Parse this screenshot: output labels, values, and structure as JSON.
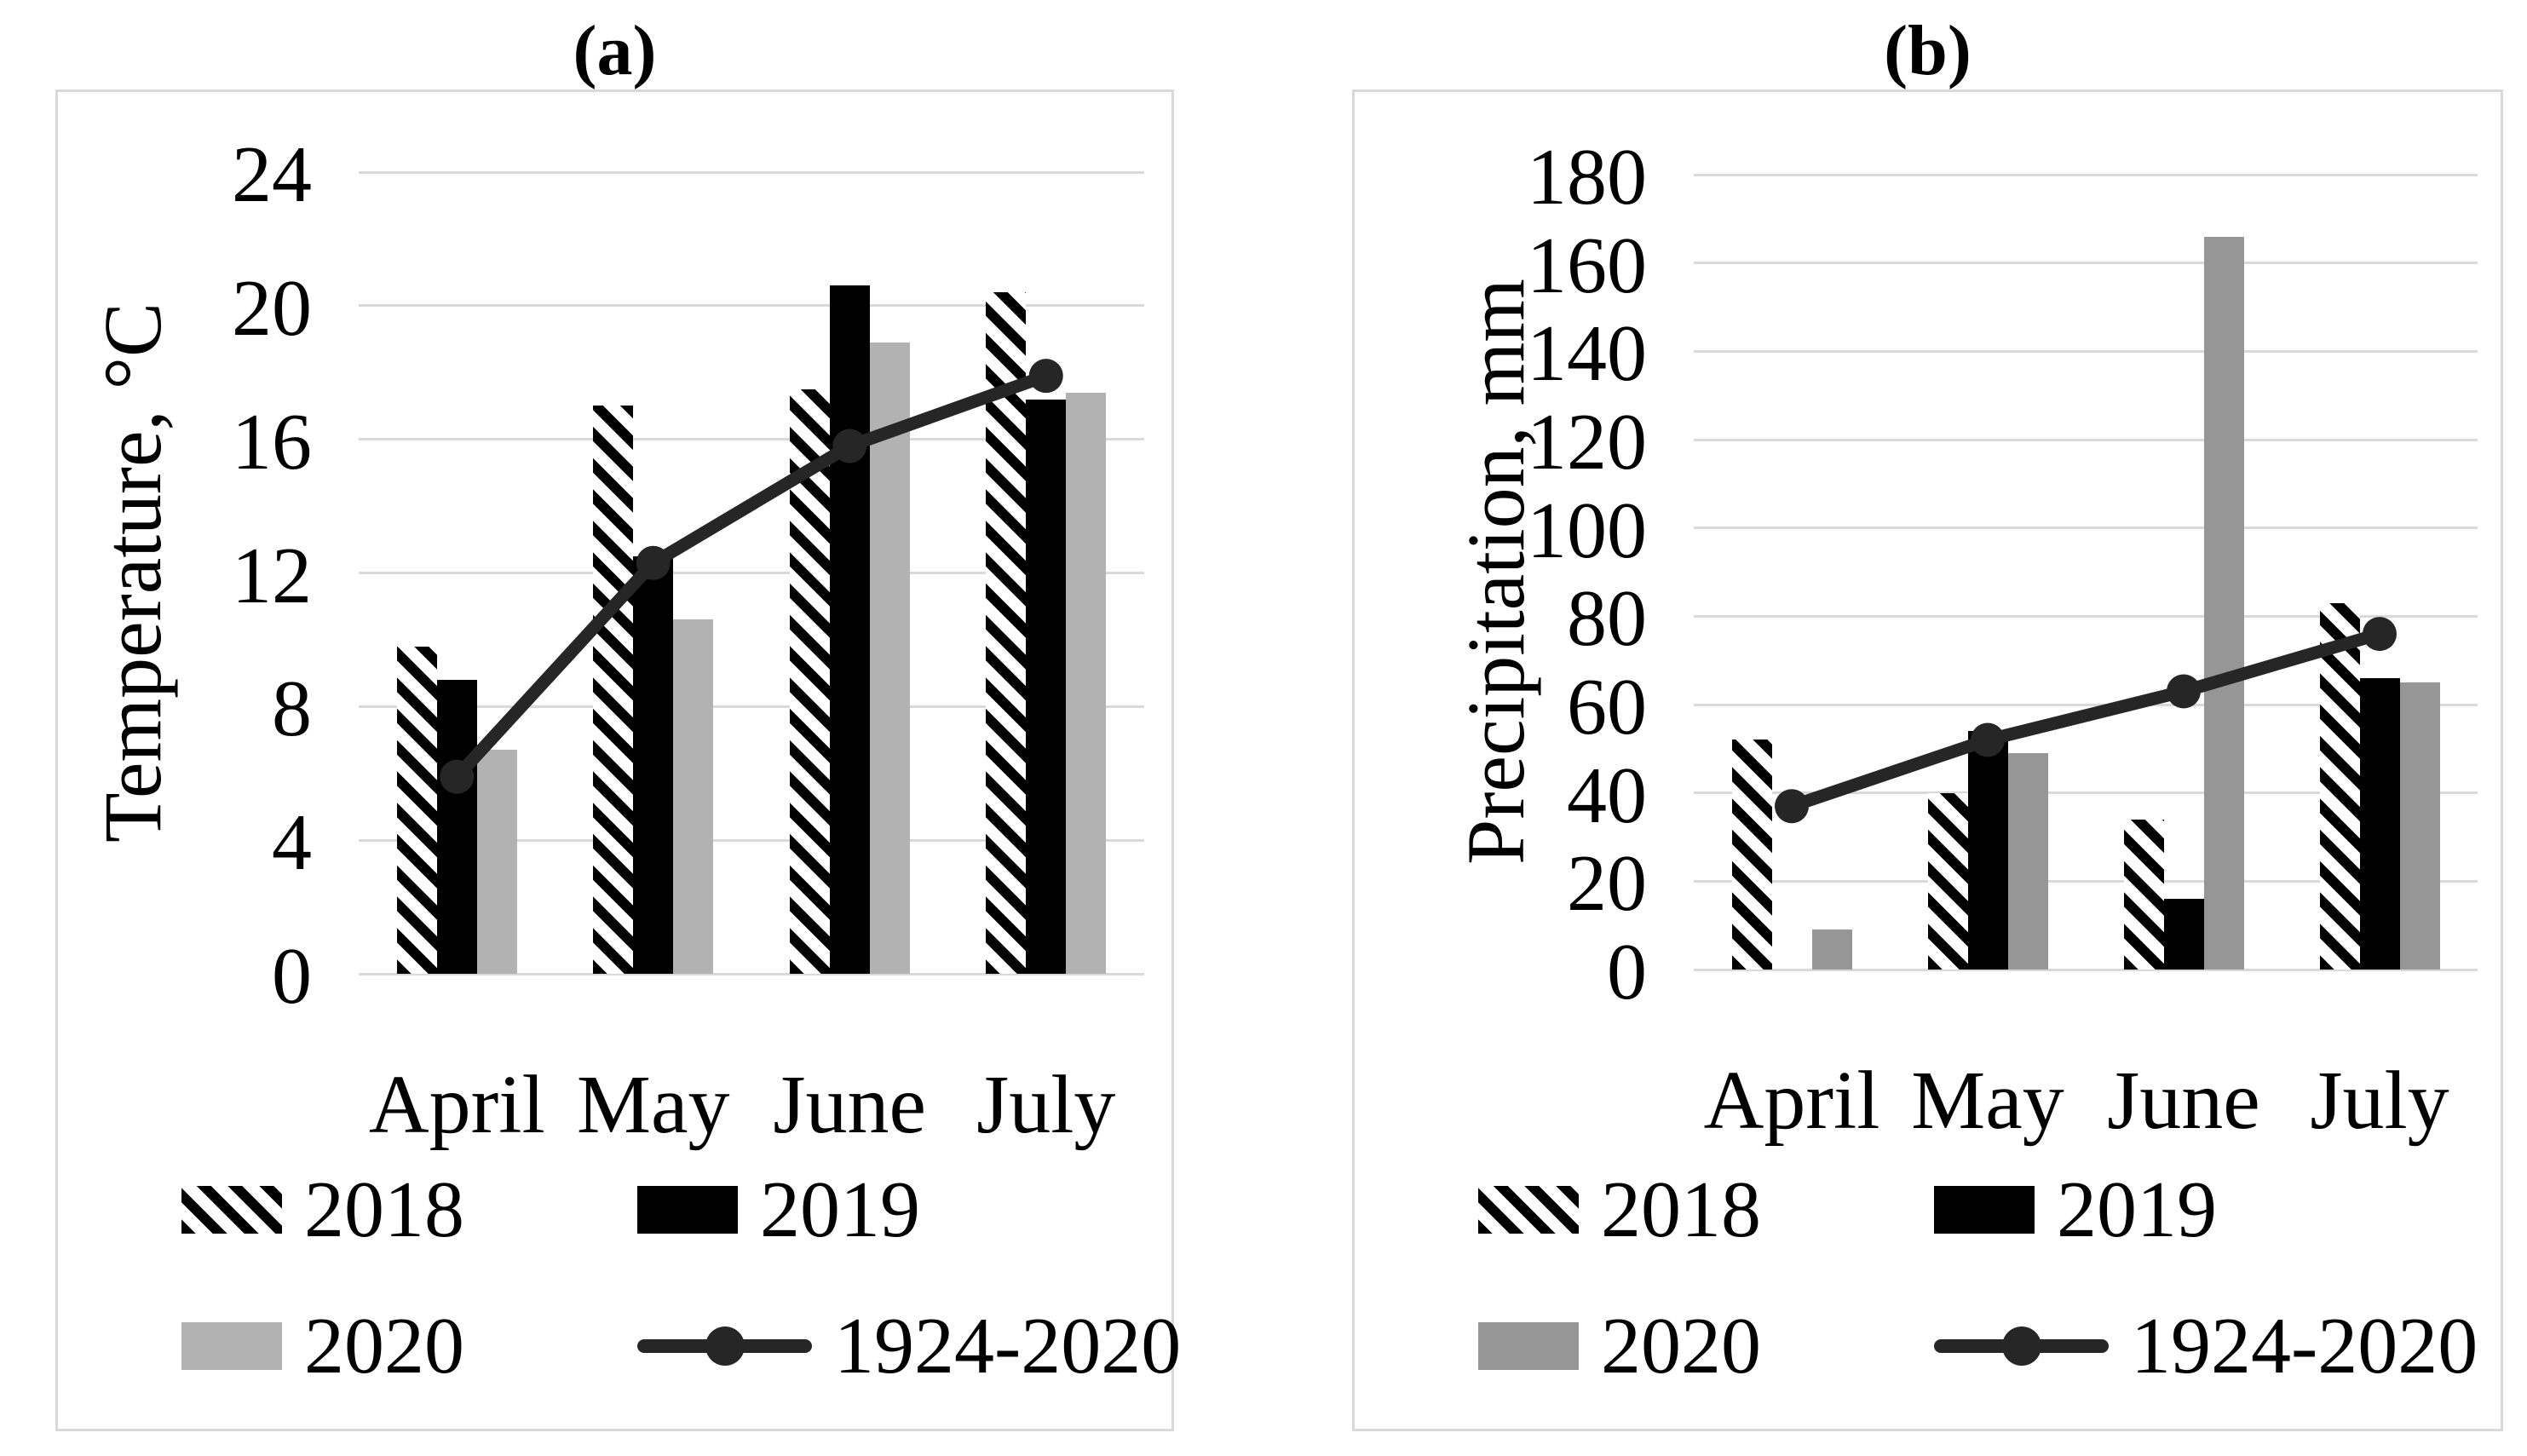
{
  "colors": {
    "bar_black": "#000000",
    "bar_gray_panel_a": "#b2b2b2",
    "bar_gray_panel_b": "#969696",
    "trend_line": "#262626",
    "gridline": "#d9d9d9",
    "panel_border": "#d9d9d9",
    "text": "#000000"
  },
  "chart_data": [
    {
      "type": "bar+line",
      "title": "(a)",
      "categories": [
        "April",
        "May",
        "June",
        "July"
      ],
      "series": [
        {
          "name": "2018",
          "kind": "bar",
          "pattern": "diagonal-hatch",
          "color": "#000000",
          "values": [
            9.8,
            17.0,
            17.5,
            20.4
          ]
        },
        {
          "name": "2019",
          "kind": "bar",
          "pattern": "solid",
          "color": "#000000",
          "values": [
            8.8,
            12.5,
            20.6,
            17.2
          ]
        },
        {
          "name": "2020",
          "kind": "bar",
          "pattern": "solid",
          "color": "#b2b2b2",
          "values": [
            6.7,
            10.6,
            18.9,
            17.4
          ]
        },
        {
          "name": "1924-2020",
          "kind": "line",
          "marker": "circle",
          "color": "#262626",
          "values": [
            5.9,
            12.3,
            15.8,
            17.9
          ]
        }
      ],
      "xlabel": "",
      "ylabel": "Temperature, °C",
      "ylim": [
        0,
        24
      ],
      "yticks": [
        24,
        20,
        16,
        12,
        8,
        4,
        0
      ],
      "grid": true,
      "legend_position": "bottom"
    },
    {
      "type": "bar+line",
      "title": "(b)",
      "categories": [
        "April",
        "May",
        "June",
        "July"
      ],
      "series": [
        {
          "name": "2018",
          "kind": "bar",
          "pattern": "diagonal-hatch",
          "color": "#000000",
          "values": [
            52,
            40,
            34,
            83
          ]
        },
        {
          "name": "2019",
          "kind": "bar",
          "pattern": "solid",
          "color": "#000000",
          "values": [
            0,
            54,
            16,
            66
          ]
        },
        {
          "name": "2020",
          "kind": "bar",
          "pattern": "solid",
          "color": "#969696",
          "values": [
            9,
            49,
            166,
            65
          ]
        },
        {
          "name": "1924-2020",
          "kind": "line",
          "marker": "circle",
          "color": "#262626",
          "values": [
            37,
            52,
            63,
            76
          ]
        }
      ],
      "xlabel": "",
      "ylabel": "Precipitation, mm",
      "ylim": [
        0,
        180
      ],
      "yticks": [
        180,
        160,
        140,
        120,
        100,
        80,
        60,
        40,
        20,
        0
      ],
      "grid": true,
      "legend_position": "bottom"
    }
  ]
}
